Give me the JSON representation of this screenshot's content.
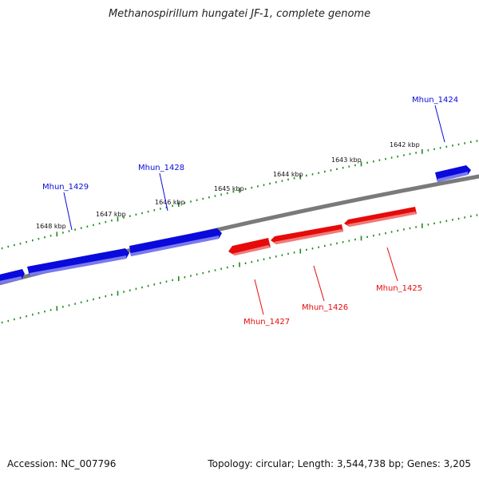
{
  "title": "Methanospirillum hungatei JF-1, complete genome",
  "footer": {
    "accession": "Accession: NC_007796",
    "summary": "Topology: circular; Length: 3,544,738 bp; Genes: 3,205"
  },
  "colors": {
    "forward_gene": "#0a0adc",
    "reverse_gene": "#e60a0a",
    "backbone": "#7a7a7a",
    "tick": "#1a8a1a"
  },
  "ruler_labels": [
    "1648 kbp",
    "1647 kbp",
    "1646 kbp",
    "1645 kbp",
    "1644 kbp",
    "1643 kbp",
    "1642 kbp"
  ],
  "genes": [
    {
      "label": "Mhun_1424",
      "strand": "+"
    },
    {
      "label": "Mhun_1428",
      "strand": "+"
    },
    {
      "label": "Mhun_1429",
      "strand": "+"
    },
    {
      "label": "Mhun_1425",
      "strand": "-"
    },
    {
      "label": "Mhun_1426",
      "strand": "-"
    },
    {
      "label": "Mhun_1427",
      "strand": "-"
    }
  ]
}
